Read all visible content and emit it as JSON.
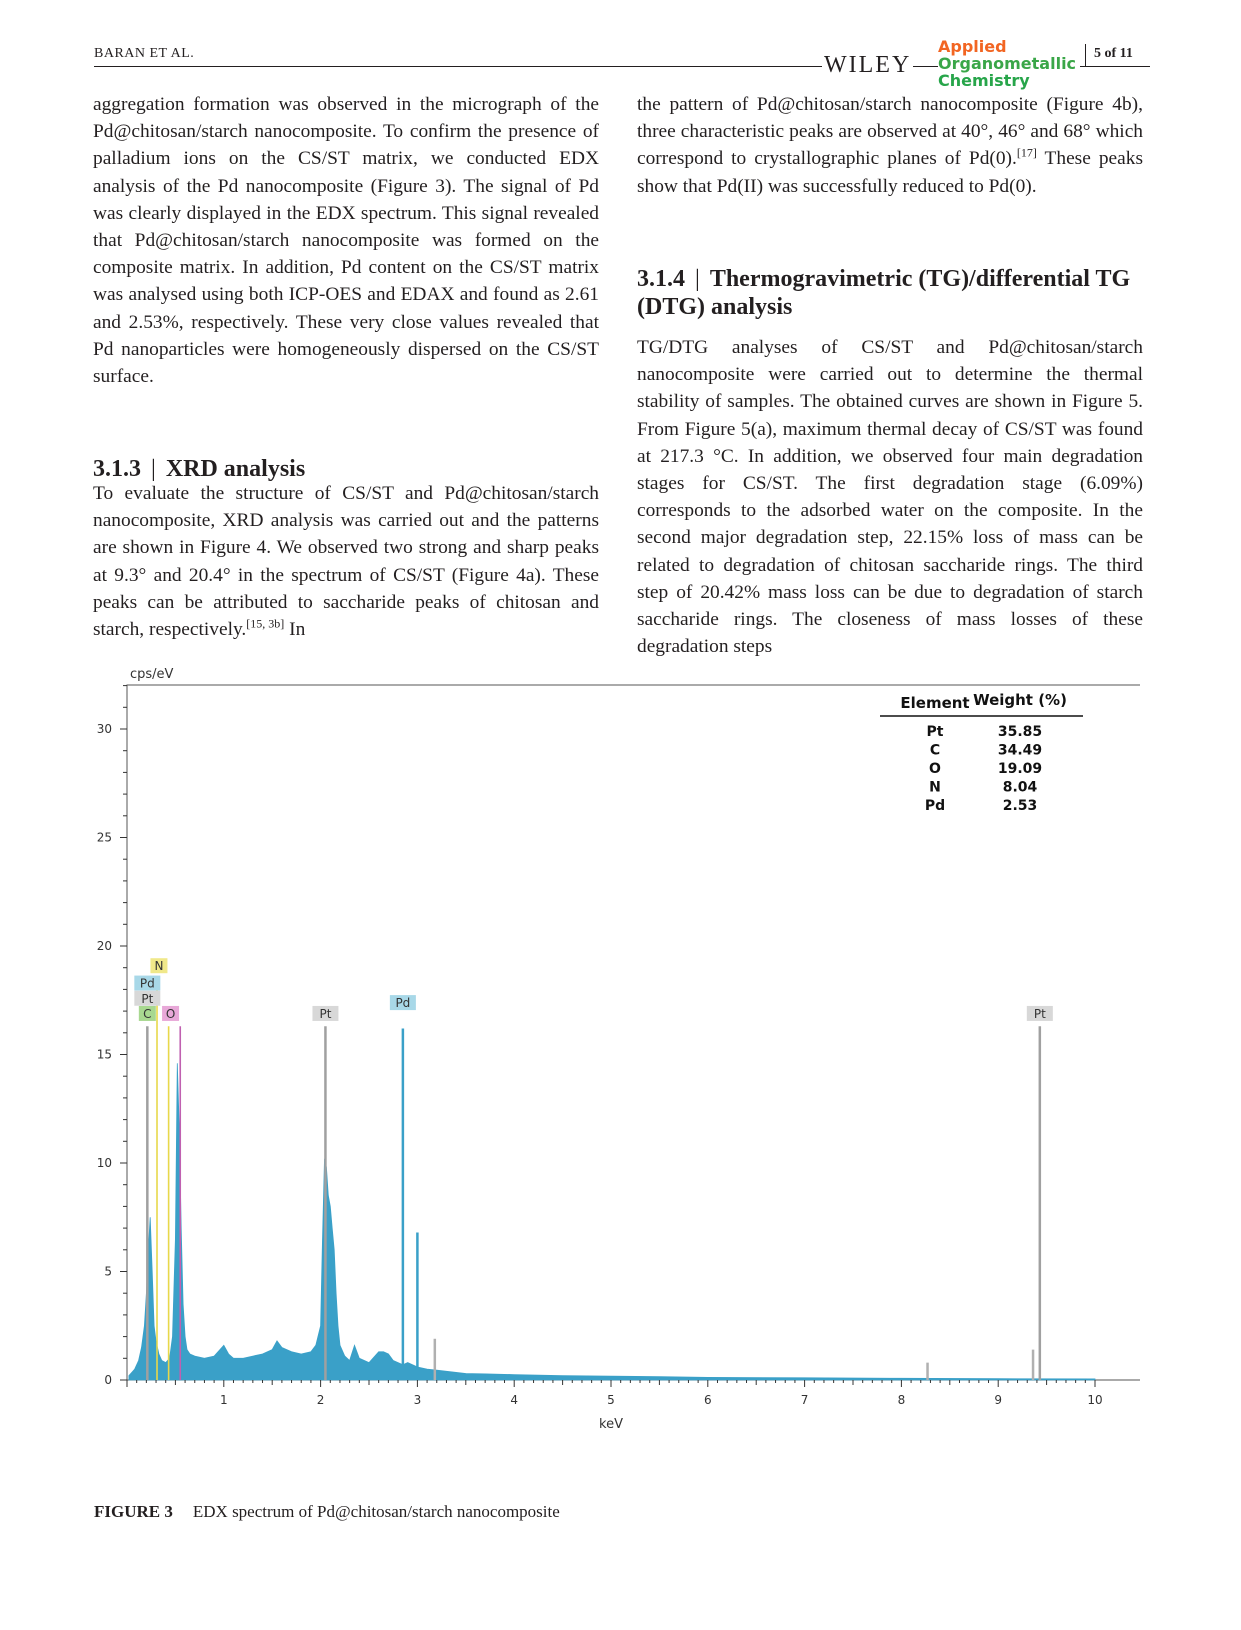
{
  "header": {
    "author": "BARAN ET AL.",
    "publisher": "WILEY",
    "journal_line1": "Applied",
    "journal_line2": "Organometallic",
    "journal_line3": "Chemistry",
    "page_label": "5 of 11"
  },
  "left_column": {
    "para1": "aggregation formation was observed in the micrograph of the Pd@chitosan/starch nanocomposite. To confirm the presence of palladium ions on the CS/ST matrix, we conducted EDX analysis of the Pd nanocomposite (Figure 3). The signal of Pd was clearly displayed in the EDX spectrum. This signal revealed that Pd@chitosan/starch nanocomposite was formed on the composite matrix. In addition, Pd content on the CS/ST matrix was analysed using both ICP-OES and EDAX and found as 2.61 and 2.53%, respectively. These very close values revealed that Pd nanoparticles were homogeneously dispersed on the CS/ST surface.",
    "heading_number": "3.1.3",
    "heading_separator": "|",
    "heading_title": "XRD analysis",
    "para2_main": "To evaluate the structure of CS/ST and Pd@chitosan/starch nanocomposite, XRD analysis was carried out and the patterns are shown in Figure 4. We observed two strong and sharp peaks at 9.3° and 20.4° in the spectrum of CS/ST (Figure 4a). These peaks can be attributed to saccharide peaks of chitosan and starch, respectively.",
    "para2_ref": "[15, 3b]",
    "para2_tail": " In"
  },
  "right_column": {
    "para1_main": "the pattern of Pd@chitosan/starch nanocomposite (Figure 4b), three characteristic peaks are observed at 40°, 46° and 68° which correspond to crystallographic planes of Pd(0).",
    "para1_ref": "[17]",
    "para1_tail": " These peaks show that Pd(II) was successfully reduced to Pd(0).",
    "heading_number": "3.1.4",
    "heading_separator": "|",
    "heading_title": "Thermogravimetric (TG)/differential TG (DTG) analysis",
    "para2": "TG/DTG analyses of CS/ST and Pd@chitosan/starch nanocomposite were carried out to determine the thermal stability of samples. The obtained curves are shown in Figure 5. From Figure 5(a), maximum thermal decay of CS/ST was found at 217.3 °C. In addition, we observed four main degradation stages for CS/ST. The first degradation stage (6.09%) corresponds to the adsorbed water on the composite. In the second major degradation step, 22.15% loss of mass can be related to degradation of chitosan saccharide rings. The third step of 20.42% mass loss can be due to degradation of starch saccharide rings. The closeness of mass losses of these degradation steps"
  },
  "figure": {
    "caption_label": "FIGURE 3",
    "caption_text": "EDX spectrum of Pd@chitosan/starch nanocomposite"
  },
  "chart_data": {
    "type": "line",
    "title": "",
    "xlabel": "keV",
    "ylabel": "cps/eV",
    "xlim": [
      0,
      10
    ],
    "ylim": [
      0,
      32
    ],
    "xticks": [
      1,
      2,
      3,
      4,
      5,
      6,
      7,
      8,
      9,
      10
    ],
    "yticks": [
      0,
      5,
      10,
      15,
      20,
      25,
      30
    ],
    "grid": false,
    "series_color": "#3aa0c8",
    "spectrum": {
      "x": [
        0.02,
        0.08,
        0.12,
        0.15,
        0.18,
        0.2,
        0.22,
        0.24,
        0.26,
        0.28,
        0.3,
        0.33,
        0.36,
        0.4,
        0.44,
        0.47,
        0.5,
        0.52,
        0.54,
        0.56,
        0.58,
        0.6,
        0.62,
        0.65,
        0.7,
        0.8,
        0.9,
        1.0,
        1.05,
        1.1,
        1.15,
        1.2,
        1.3,
        1.4,
        1.5,
        1.55,
        1.6,
        1.65,
        1.7,
        1.8,
        1.9,
        1.95,
        2.0,
        2.02,
        2.04,
        2.06,
        2.08,
        2.1,
        2.12,
        2.14,
        2.16,
        2.18,
        2.2,
        2.25,
        2.3,
        2.35,
        2.4,
        2.5,
        2.6,
        2.65,
        2.7,
        2.75,
        2.8,
        2.85,
        2.9,
        3.0,
        3.1,
        3.2,
        3.3,
        3.4,
        3.5,
        3.7,
        4.0,
        4.5,
        5.0,
        5.5,
        6.0,
        7.0,
        8.0,
        9.0,
        10.0
      ],
      "y": [
        0.2,
        0.5,
        0.9,
        1.5,
        2.5,
        4.0,
        6.0,
        7.5,
        5.0,
        2.5,
        1.8,
        1.2,
        0.9,
        0.8,
        1.0,
        2.0,
        6.5,
        14.6,
        11.5,
        7.0,
        3.5,
        2.0,
        1.4,
        1.2,
        1.1,
        1.0,
        1.1,
        1.6,
        1.2,
        1.0,
        1.0,
        1.0,
        1.1,
        1.2,
        1.4,
        1.8,
        1.5,
        1.4,
        1.3,
        1.2,
        1.3,
        1.6,
        2.5,
        6.5,
        10.2,
        9.8,
        8.5,
        8.0,
        7.0,
        6.0,
        4.0,
        2.5,
        1.6,
        1.1,
        0.9,
        1.6,
        1.0,
        0.8,
        1.3,
        1.3,
        1.2,
        0.9,
        0.8,
        0.7,
        0.8,
        0.6,
        0.5,
        0.45,
        0.4,
        0.35,
        0.3,
        0.28,
        0.25,
        0.2,
        0.18,
        0.15,
        0.12,
        0.1,
        0.08,
        0.06,
        0.05
      ]
    },
    "sharp_lines": [
      {
        "x": 0.21,
        "y": 16.3,
        "color": "#a0a0a0"
      },
      {
        "x": 2.05,
        "y": 16.3,
        "color": "#a0a0a0"
      },
      {
        "x": 2.85,
        "y": 16.2,
        "color": "#3aa0c8"
      },
      {
        "x": 3.0,
        "y": 6.8,
        "color": "#3aa0c8"
      },
      {
        "x": 3.18,
        "y": 1.9,
        "color": "#b0b0b0"
      },
      {
        "x": 8.27,
        "y": 0.8,
        "color": "#b0b0b0"
      },
      {
        "x": 9.36,
        "y": 1.4,
        "color": "#b0b0b0"
      },
      {
        "x": 9.43,
        "y": 16.3,
        "color": "#a0a0a0"
      }
    ],
    "marker_lines": [
      {
        "x": 0.31,
        "y": 18.5,
        "color": "#e8d84a"
      },
      {
        "x": 0.43,
        "y": 16.3,
        "color": "#e8d84a"
      },
      {
        "x": 0.55,
        "y": 16.3,
        "color": "#c060b0"
      }
    ],
    "peak_labels": [
      {
        "text": "N",
        "x": 0.33,
        "y": 18.7,
        "bg": "#f0e88a"
      },
      {
        "text": "Pd",
        "x": 0.21,
        "y": 17.9,
        "bg": "#a8d8e8"
      },
      {
        "text": "Pt",
        "x": 0.21,
        "y": 17.2,
        "bg": "#d8d8d8"
      },
      {
        "text": "C",
        "x": 0.21,
        "y": 16.5,
        "bg": "#a8d890"
      },
      {
        "text": "O",
        "x": 0.45,
        "y": 16.5,
        "bg": "#e8a8d8"
      },
      {
        "text": "Pt",
        "x": 2.05,
        "y": 16.5,
        "bg": "#d8d8d8"
      },
      {
        "text": "Pd",
        "x": 2.85,
        "y": 17.0,
        "bg": "#a8d8e8"
      },
      {
        "text": "Pt",
        "x": 9.43,
        "y": 16.5,
        "bg": "#d8d8d8"
      }
    ],
    "table": {
      "headers": [
        "Element",
        "Weight (%)"
      ],
      "rows": [
        [
          "Pt",
          "35.85"
        ],
        [
          "C",
          "34.49"
        ],
        [
          "O",
          "19.09"
        ],
        [
          "N",
          "8.04"
        ],
        [
          "Pd",
          "2.53"
        ]
      ]
    }
  }
}
